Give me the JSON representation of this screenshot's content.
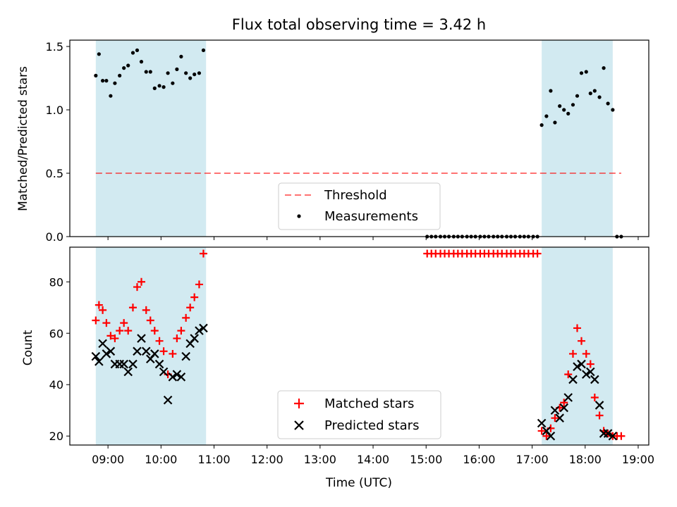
{
  "chart_data": {
    "type": "scatter",
    "title": "Flux total observing time = 3.42 h",
    "xlabel": "Time (UTC)",
    "x_ticks": [
      "09:00",
      "10:00",
      "11:00",
      "12:00",
      "13:00",
      "14:00",
      "15:00",
      "16:00",
      "17:00",
      "18:00",
      "19:00"
    ],
    "xlim_hours": [
      8.28,
      19.2
    ],
    "shaded_intervals_hours": [
      [
        8.77,
        10.85
      ],
      [
        17.18,
        18.52
      ]
    ],
    "colors": {
      "shade": "#add8e6",
      "threshold": "#ff0000",
      "matched": "#ff0000",
      "predicted": "#000000",
      "measurements": "#000000"
    },
    "top_panel": {
      "ylabel": "Matched/Predicted stars",
      "ylim": [
        0,
        1.55
      ],
      "y_ticks": [
        "0.0",
        "0.5",
        "1.0",
        "1.5"
      ],
      "threshold": {
        "name": "Threshold",
        "value": 0.5,
        "x_range": [
          8.77,
          18.68
        ]
      },
      "legend": {
        "position": "lower center",
        "entries": [
          "Threshold",
          "Measurements"
        ]
      },
      "measurements": {
        "name": "Measurements",
        "x": [
          8.77,
          8.83,
          8.9,
          8.97,
          9.05,
          9.13,
          9.22,
          9.3,
          9.38,
          9.47,
          9.55,
          9.63,
          9.72,
          9.8,
          9.88,
          9.97,
          10.05,
          10.13,
          10.22,
          10.3,
          10.38,
          10.47,
          10.55,
          10.63,
          10.72,
          10.8,
          15.02,
          15.1,
          15.18,
          15.27,
          15.35,
          15.43,
          15.52,
          15.6,
          15.68,
          15.77,
          15.85,
          15.93,
          16.02,
          16.1,
          16.18,
          16.27,
          16.35,
          16.43,
          16.52,
          16.6,
          16.68,
          16.77,
          16.85,
          16.93,
          17.02,
          17.1,
          17.18,
          17.27,
          17.35,
          17.43,
          17.52,
          17.6,
          17.68,
          17.77,
          17.85,
          17.93,
          18.02,
          18.1,
          18.18,
          18.27,
          18.35,
          18.43,
          18.52,
          18.6,
          18.68
        ],
        "y": [
          1.27,
          1.44,
          1.23,
          1.23,
          1.11,
          1.21,
          1.27,
          1.33,
          1.35,
          1.45,
          1.47,
          1.38,
          1.3,
          1.3,
          1.17,
          1.19,
          1.18,
          1.29,
          1.21,
          1.32,
          1.42,
          1.29,
          1.25,
          1.28,
          1.29,
          1.47,
          0,
          0,
          0,
          0,
          0,
          0,
          0,
          0,
          0,
          0,
          0,
          0,
          0,
          0,
          0,
          0,
          0,
          0,
          0,
          0,
          0,
          0,
          0,
          0,
          0,
          0,
          0.88,
          0.95,
          1.15,
          0.9,
          1.03,
          1.0,
          0.97,
          1.04,
          1.11,
          1.29,
          1.3,
          1.13,
          1.15,
          1.1,
          1.33,
          1.05,
          1.0,
          0,
          0
        ]
      }
    },
    "bottom_panel": {
      "ylabel": "Count",
      "ylim": [
        16.5,
        93.5
      ],
      "y_ticks": [
        "20",
        "40",
        "60",
        "80"
      ],
      "legend": {
        "position": "lower center",
        "entries": [
          "Matched stars",
          "Predicted stars"
        ]
      },
      "series": [
        {
          "name": "Matched stars",
          "marker": "+",
          "x": [
            8.77,
            8.83,
            8.9,
            8.97,
            9.05,
            9.13,
            9.22,
            9.3,
            9.38,
            9.47,
            9.55,
            9.63,
            9.72,
            9.8,
            9.88,
            9.97,
            10.05,
            10.13,
            10.22,
            10.3,
            10.38,
            10.47,
            10.55,
            10.63,
            10.72,
            10.8,
            15.02,
            15.1,
            15.18,
            15.27,
            15.35,
            15.43,
            15.52,
            15.6,
            15.68,
            15.77,
            15.85,
            15.93,
            16.02,
            16.1,
            16.18,
            16.27,
            16.35,
            16.43,
            16.52,
            16.6,
            16.68,
            16.77,
            16.85,
            16.93,
            17.02,
            17.1,
            17.18,
            17.27,
            17.35,
            17.43,
            17.52,
            17.6,
            17.68,
            17.77,
            17.85,
            17.93,
            18.02,
            18.1,
            18.18,
            18.27,
            18.35,
            18.43,
            18.52,
            18.6,
            18.68
          ],
          "y": [
            65,
            71,
            69,
            64,
            59,
            58,
            61,
            64,
            61,
            70,
            78,
            80,
            69,
            65,
            61,
            57,
            53,
            44,
            52,
            58,
            61,
            66,
            70,
            74,
            79,
            91,
            91,
            91,
            91,
            91,
            91,
            91,
            91,
            91,
            91,
            91,
            91,
            91,
            91,
            91,
            91,
            91,
            91,
            91,
            91,
            91,
            91,
            91,
            91,
            91,
            91,
            91,
            22,
            20,
            23,
            27,
            31,
            33,
            44,
            52,
            62,
            57,
            52,
            48,
            35,
            28,
            22,
            21,
            20,
            20,
            20
          ]
        },
        {
          "name": "Predicted stars",
          "marker": "x",
          "x": [
            8.77,
            8.83,
            8.9,
            8.97,
            9.05,
            9.13,
            9.22,
            9.3,
            9.38,
            9.47,
            9.55,
            9.63,
            9.72,
            9.8,
            9.88,
            9.97,
            10.05,
            10.13,
            10.22,
            10.3,
            10.38,
            10.47,
            10.55,
            10.63,
            10.72,
            10.8,
            17.18,
            17.27,
            17.35,
            17.43,
            17.52,
            17.6,
            17.68,
            17.77,
            17.85,
            17.93,
            18.02,
            18.1,
            18.18,
            18.27,
            18.35,
            18.43,
            18.52
          ],
          "y": [
            51,
            49,
            56,
            52,
            53,
            48,
            48,
            48,
            45,
            48,
            53,
            58,
            53,
            50,
            52,
            48,
            45,
            34,
            43,
            44,
            43,
            51,
            56,
            58,
            61,
            62,
            25,
            22,
            20,
            30,
            27,
            31,
            35,
            42,
            47,
            48,
            44,
            45,
            42,
            32,
            21,
            21,
            20
          ]
        }
      ]
    }
  }
}
